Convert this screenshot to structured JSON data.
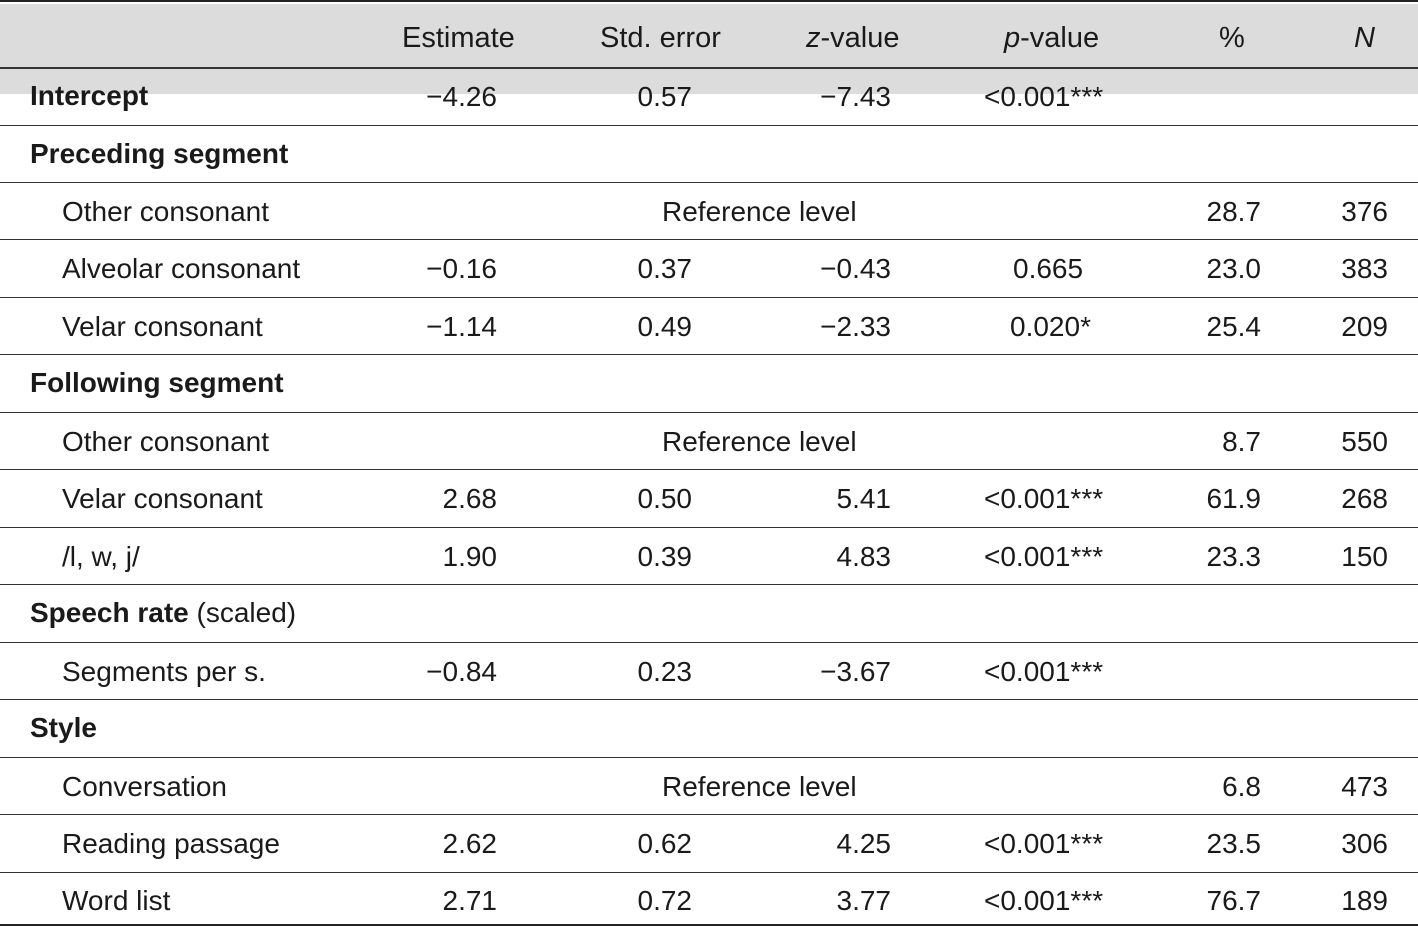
{
  "header": {
    "estimate": "Estimate",
    "std_error": "Std. error",
    "z_value_prefix": "z",
    "z_value_suffix": "-value",
    "p_value_prefix": "p",
    "p_value_suffix": "-value",
    "percent": "%",
    "n": "N"
  },
  "rows": {
    "intercept": {
      "label": "Intercept",
      "estimate": "−4.26",
      "se": "0.57",
      "z": "−7.43",
      "p": "<0.001***"
    },
    "preceding": {
      "label": "Preceding segment"
    },
    "prec_other": {
      "label": "Other consonant",
      "ref": "Reference level",
      "pct": "28.7",
      "n": "376"
    },
    "prec_alveolar": {
      "label": "Alveolar consonant",
      "estimate": "−0.16",
      "se": "0.37",
      "z": "−0.43",
      "p": "0.665",
      "pct": "23.0",
      "n": "383"
    },
    "prec_velar": {
      "label": "Velar consonant",
      "estimate": "−1.14",
      "se": "0.49",
      "z": "−2.33",
      "p": "0.020*",
      "pct": "25.4",
      "n": "209"
    },
    "following": {
      "label": "Following segment"
    },
    "fol_other": {
      "label": "Other consonant",
      "ref": "Reference level",
      "pct": "8.7",
      "n": "550"
    },
    "fol_velar": {
      "label": "Velar consonant",
      "estimate": "2.68",
      "se": "0.50",
      "z": "5.41",
      "p": "<0.001***",
      "pct": "61.9",
      "n": "268"
    },
    "fol_lwj": {
      "label": "/l, w, j/",
      "estimate": "1.90",
      "se": "0.39",
      "z": "4.83",
      "p": "<0.001***",
      "pct": "23.3",
      "n": "150"
    },
    "speech_rate": {
      "label": "Speech rate",
      "label_suffix": " (scaled)"
    },
    "segments": {
      "label": "Segments per s.",
      "estimate": "−0.84",
      "se": "0.23",
      "z": "−3.67",
      "p": "<0.001***"
    },
    "style": {
      "label": "Style"
    },
    "conversation": {
      "label": "Conversation",
      "ref": "Reference level",
      "pct": "6.8",
      "n": "473"
    },
    "reading": {
      "label": "Reading passage",
      "estimate": "2.62",
      "se": "0.62",
      "z": "4.25",
      "p": "<0.001***",
      "pct": "23.5",
      "n": "306"
    },
    "wordlist": {
      "label": "Word list",
      "estimate": "2.71",
      "se": "0.72",
      "z": "3.77",
      "p": "<0.001***",
      "pct": "76.7",
      "n": "189"
    }
  }
}
